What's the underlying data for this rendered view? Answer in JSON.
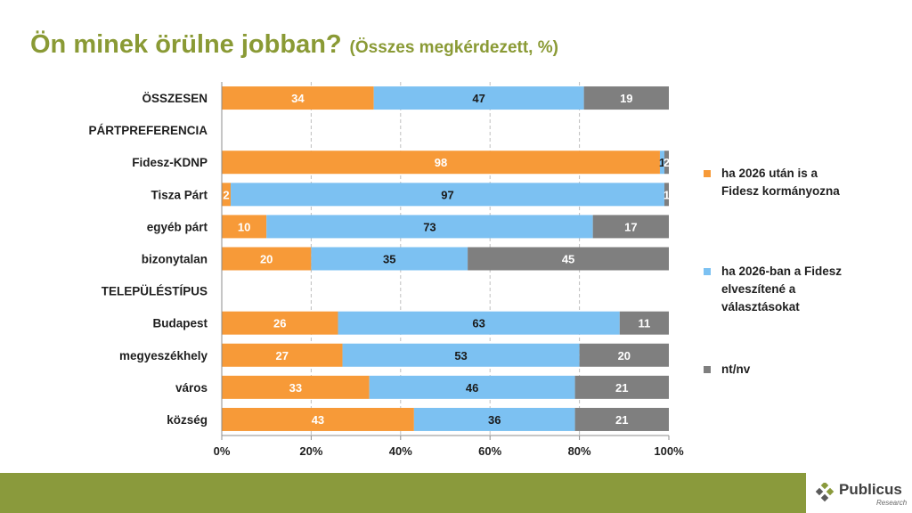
{
  "title": "Ön minek örülne jobban?",
  "subtitle": "(Összes megkérdezett, %)",
  "chart_data": {
    "type": "bar",
    "orientation": "horizontal",
    "stacked": true,
    "title": "Ön minek örülne jobban?",
    "subtitle": "(Összes megkérdezett, %)",
    "xlim": [
      0,
      100
    ],
    "x_ticks": [
      "0%",
      "20%",
      "40%",
      "60%",
      "80%",
      "100%"
    ],
    "categories": [
      "ÖSSZESEN",
      "PÁRTPREFERENCIA",
      "Fidesz-KDNP",
      "Tisza Párt",
      "egyéb párt",
      "bizonytalan",
      "TELEPÜLÉSTÍPUS",
      "Budapest",
      "megyeszékhely",
      "város",
      "község"
    ],
    "series": [
      {
        "name": "ha 2026 után is a Fidesz kormányozna",
        "color": "#f79a38",
        "label_color": "#ffffff",
        "values": [
          34,
          null,
          98,
          2,
          10,
          20,
          null,
          26,
          27,
          33,
          43
        ]
      },
      {
        "name": "ha 2026-ban a Fidesz elveszítené a választásokat",
        "color": "#7cc1f2",
        "label_color": "#1a1a1a",
        "values": [
          47,
          null,
          1,
          97,
          73,
          35,
          null,
          63,
          53,
          46,
          36
        ]
      },
      {
        "name": "nt/nv",
        "color": "#7f7f7f",
        "label_color": "#ffffff",
        "values": [
          19,
          null,
          2,
          1,
          17,
          45,
          null,
          11,
          20,
          21,
          21
        ]
      }
    ],
    "legend_position": "right"
  },
  "legend": {
    "item1_line1": "ha 2026 után is a",
    "item1_line2": "Fidesz kormányozna",
    "item2_line1": "ha 2026-ban a Fidesz",
    "item2_line2": "elveszítené a",
    "item2_line3": "választásokat",
    "item3_line1": "nt/nv"
  },
  "colors": {
    "accent": "#8a9a35",
    "footer": "#8a9a3c",
    "orange": "#f79a38",
    "blue": "#7cc1f2",
    "gray": "#7f7f7f"
  },
  "logo": {
    "name": "Publicus",
    "sub": "Research"
  }
}
